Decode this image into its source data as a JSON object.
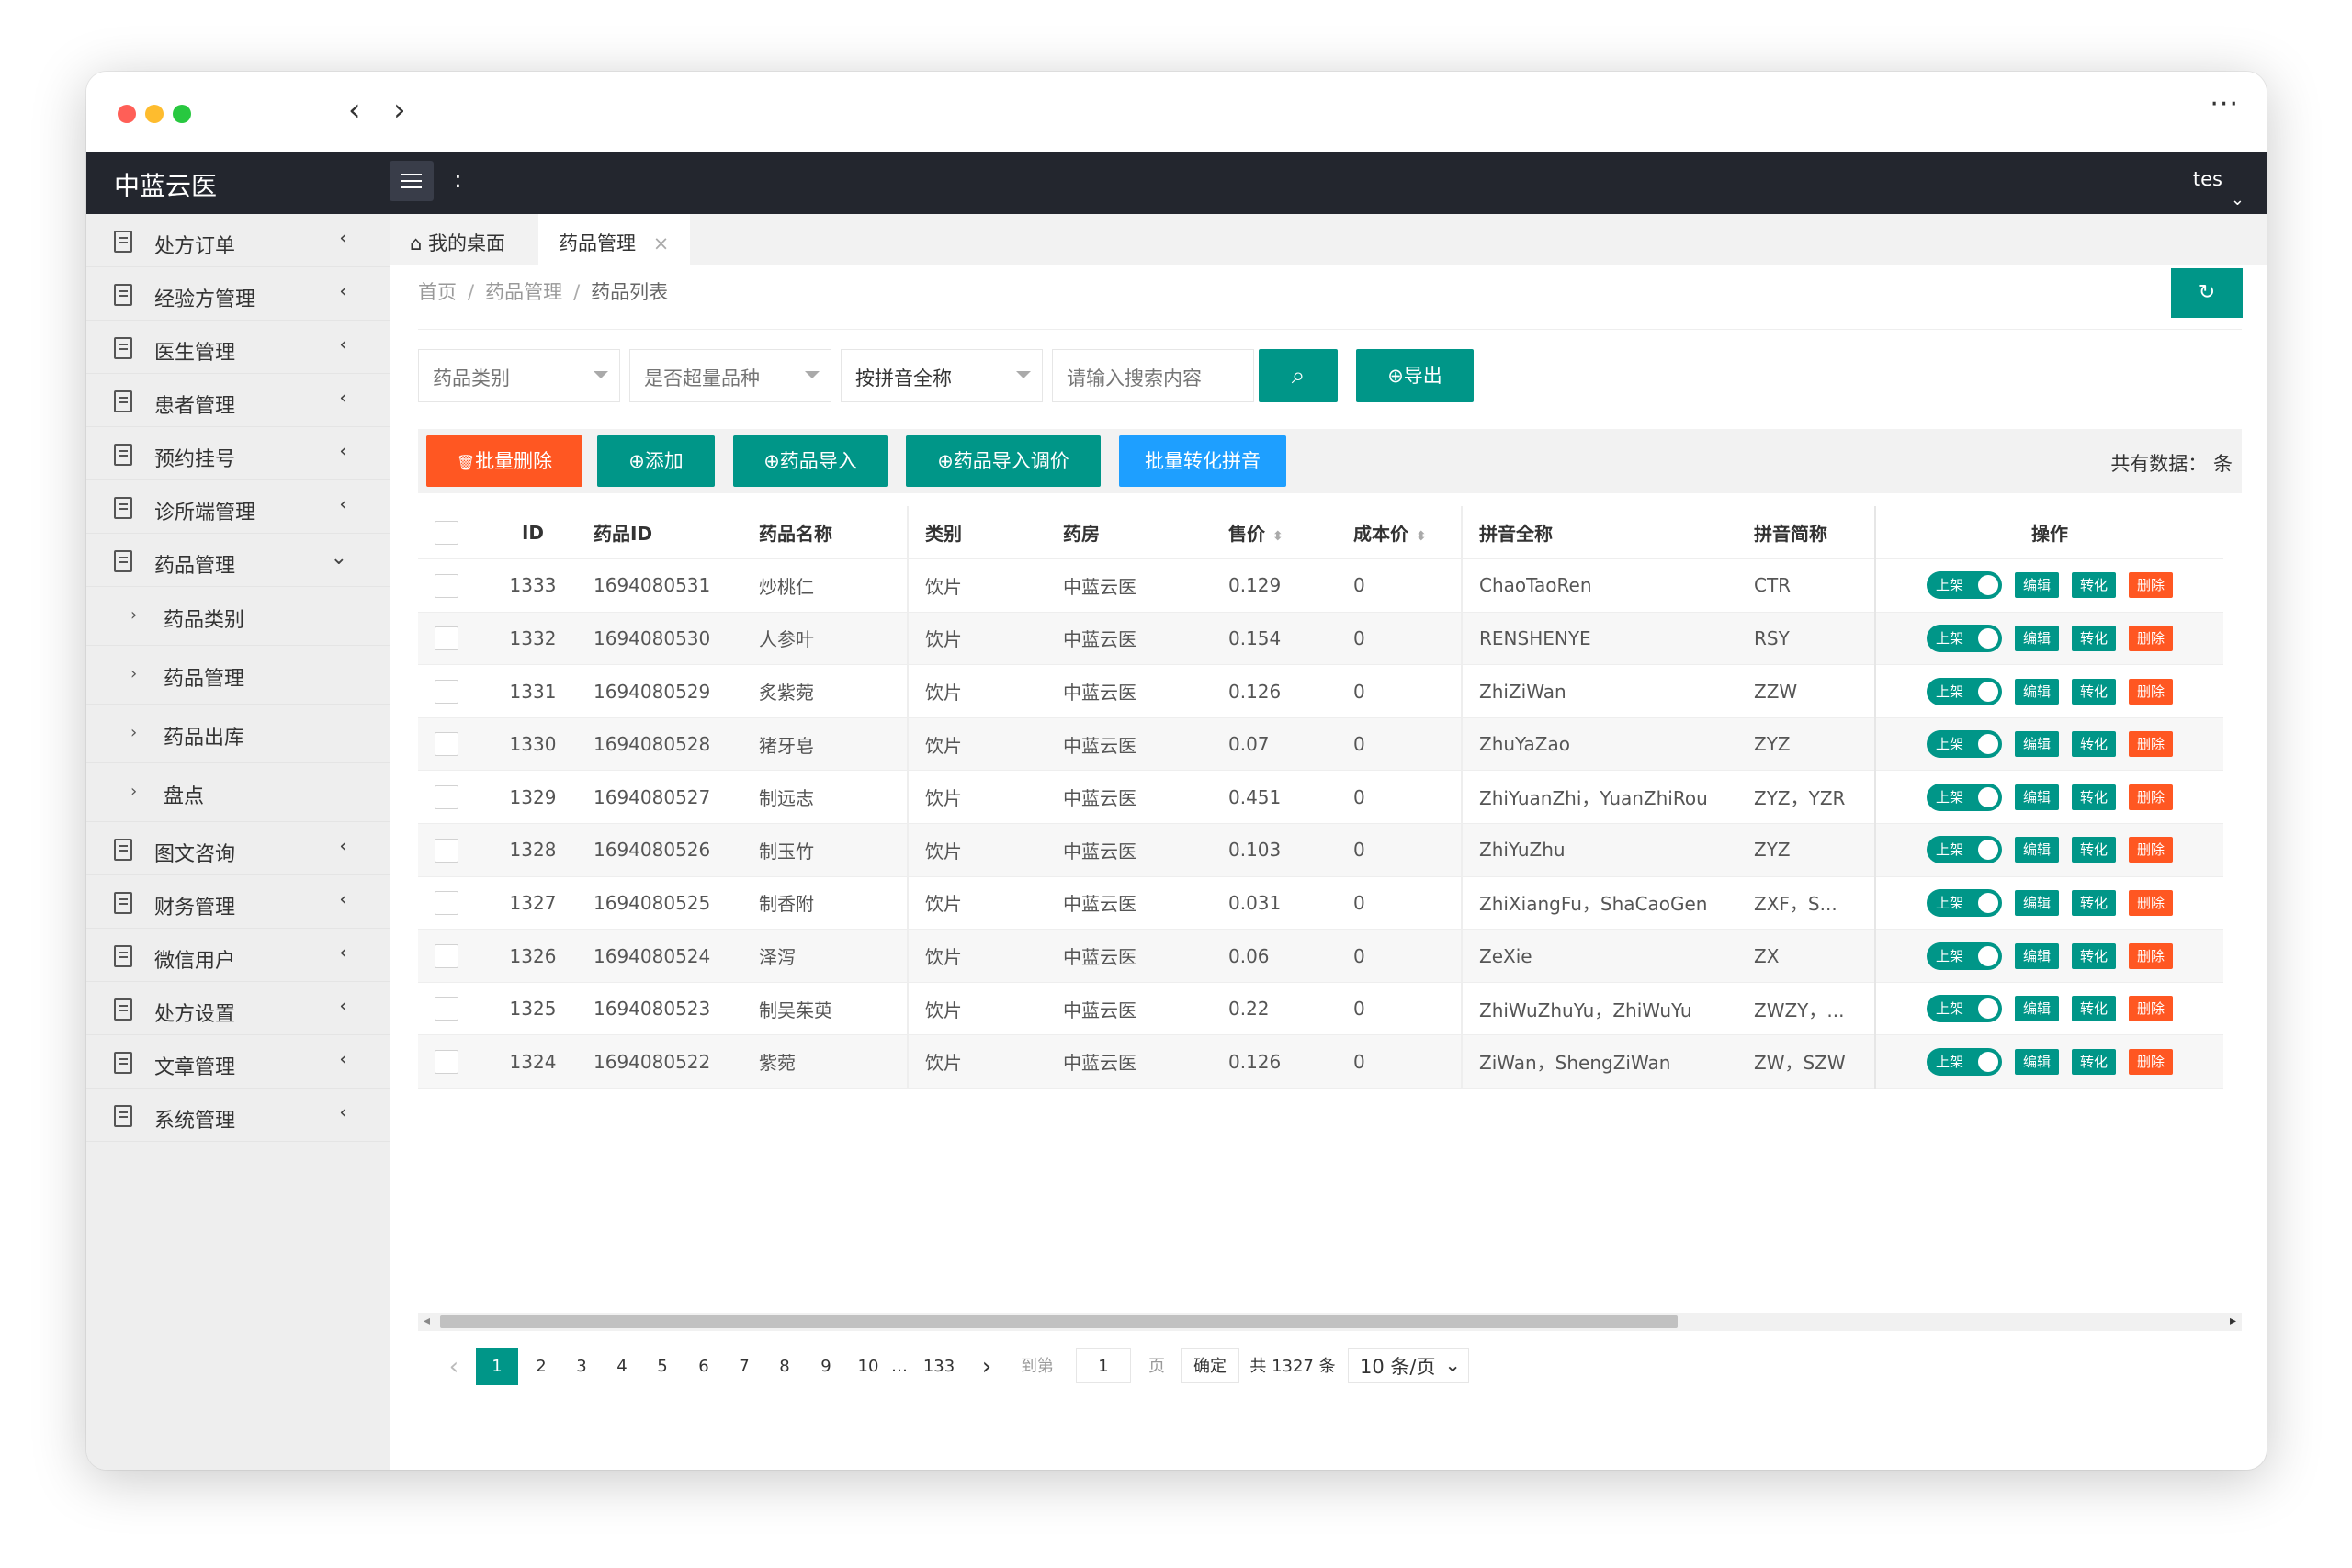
{
  "window": {
    "nav_back": "‹",
    "nav_forward": "›",
    "more": "···"
  },
  "header": {
    "logo": "中蓝云医",
    "colon": ":",
    "user": "tes",
    "user_caret": "⌄"
  },
  "sidebar": {
    "items_top": [
      {
        "label": "处方订单",
        "chev": "‹"
      },
      {
        "label": "经验方管理",
        "chev": "‹"
      },
      {
        "label": "医生管理",
        "chev": "‹"
      },
      {
        "label": "患者管理",
        "chev": "‹"
      },
      {
        "label": "预约挂号",
        "chev": "‹"
      },
      {
        "label": "诊所端管理",
        "chev": "‹"
      },
      {
        "label": "药品管理",
        "chev": "⌄"
      }
    ],
    "sub_items": [
      {
        "label": "药品类别"
      },
      {
        "label": "药品管理"
      },
      {
        "label": "药品出库"
      },
      {
        "label": "盘点"
      }
    ],
    "items_bottom": [
      {
        "label": "图文咨询",
        "chev": "‹"
      },
      {
        "label": "财务管理",
        "chev": "‹"
      },
      {
        "label": "微信用户",
        "chev": "‹"
      },
      {
        "label": "处方设置",
        "chev": "‹"
      },
      {
        "label": "文章管理",
        "chev": "‹"
      },
      {
        "label": "系统管理",
        "chev": "‹"
      }
    ]
  },
  "tabs": [
    {
      "label": "我的桌面",
      "icon": "⌂"
    },
    {
      "label": "药品管理",
      "close": "×"
    }
  ],
  "breadcrumb": {
    "items": [
      "首页",
      "药品管理",
      "药品列表"
    ],
    "sep": "/"
  },
  "refresh_icon": "↻",
  "filters": {
    "category": "药品类别",
    "overdose": "是否超量品种",
    "mode": "按拼音全称",
    "search_placeholder": "请输入搜索内容",
    "search_icon": "⌕",
    "export": "导出",
    "export_icon": "⊕"
  },
  "toolbar": {
    "batch_delete": "批量删除",
    "batch_delete_icon": "🗑",
    "add": "添加",
    "add_icon": "⊕",
    "import": "药品导入",
    "import_icon": "⊕",
    "import_price": "药品导入调价",
    "import_price_icon": "⊕",
    "batch_pinyin": "批量转化拼音",
    "total": "共有数据： 条"
  },
  "table": {
    "headers": {
      "id": "ID",
      "drug_id": "药品ID",
      "name": "药品名称",
      "category": "类别",
      "pharmacy": "药房",
      "price": "售价",
      "cost": "成本价",
      "pinyin_full": "拼音全称",
      "pinyin_short": "拼音简称",
      "ops": "操作"
    },
    "sort_icon": "⬍",
    "row_actions": {
      "toggle": "上架",
      "edit": "编辑",
      "convert": "转化",
      "delete": "删除"
    },
    "rows": [
      [
        "1333",
        "1694080531",
        "炒桃仁",
        "饮片",
        "中蓝云医",
        "0.129",
        "0",
        "ChaoTaoRen",
        "CTR"
      ],
      [
        "1332",
        "1694080530",
        "人参叶",
        "饮片",
        "中蓝云医",
        "0.154",
        "0",
        "RENSHENYE",
        "RSY"
      ],
      [
        "1331",
        "1694080529",
        "炙紫菀",
        "饮片",
        "中蓝云医",
        "0.126",
        "0",
        "ZhiZiWan",
        "ZZW"
      ],
      [
        "1330",
        "1694080528",
        "猪牙皂",
        "饮片",
        "中蓝云医",
        "0.07",
        "0",
        "ZhuYaZao",
        "ZYZ"
      ],
      [
        "1329",
        "1694080527",
        "制远志",
        "饮片",
        "中蓝云医",
        "0.451",
        "0",
        "ZhiYuanZhi，YuanZhiRou",
        "ZYZ，YZR"
      ],
      [
        "1328",
        "1694080526",
        "制玉竹",
        "饮片",
        "中蓝云医",
        "0.103",
        "0",
        "ZhiYuZhu",
        "ZYZ"
      ],
      [
        "1327",
        "1694080525",
        "制香附",
        "饮片",
        "中蓝云医",
        "0.031",
        "0",
        "ZhiXiangFu，ShaCaoGen",
        "ZXF，S..."
      ],
      [
        "1326",
        "1694080524",
        "泽泻",
        "饮片",
        "中蓝云医",
        "0.06",
        "0",
        "ZeXie",
        "ZX"
      ],
      [
        "1325",
        "1694080523",
        "制吴茱萸",
        "饮片",
        "中蓝云医",
        "0.22",
        "0",
        "ZhiWuZhuYu，ZhiWuYu",
        "ZWZY，..."
      ],
      [
        "1324",
        "1694080522",
        "紫菀",
        "饮片",
        "中蓝云医",
        "0.126",
        "0",
        "ZiWan，ShengZiWan",
        "ZW，SZW"
      ]
    ]
  },
  "pager": {
    "prev": "‹",
    "next": "›",
    "current": "1",
    "pages": [
      "2",
      "3",
      "4",
      "5",
      "6",
      "7",
      "8",
      "9",
      "10"
    ],
    "ellipsis": "…",
    "last": "133",
    "goto": "到第",
    "goto_value": "1",
    "page_unit": "页",
    "confirm": "确定",
    "total": "共 1327 条",
    "size": "10 条/页",
    "size_caret": "⌄"
  },
  "colors": {
    "teal": "#009688",
    "red": "#ff5722",
    "blue": "#1e9fff",
    "header": "#23262e"
  }
}
